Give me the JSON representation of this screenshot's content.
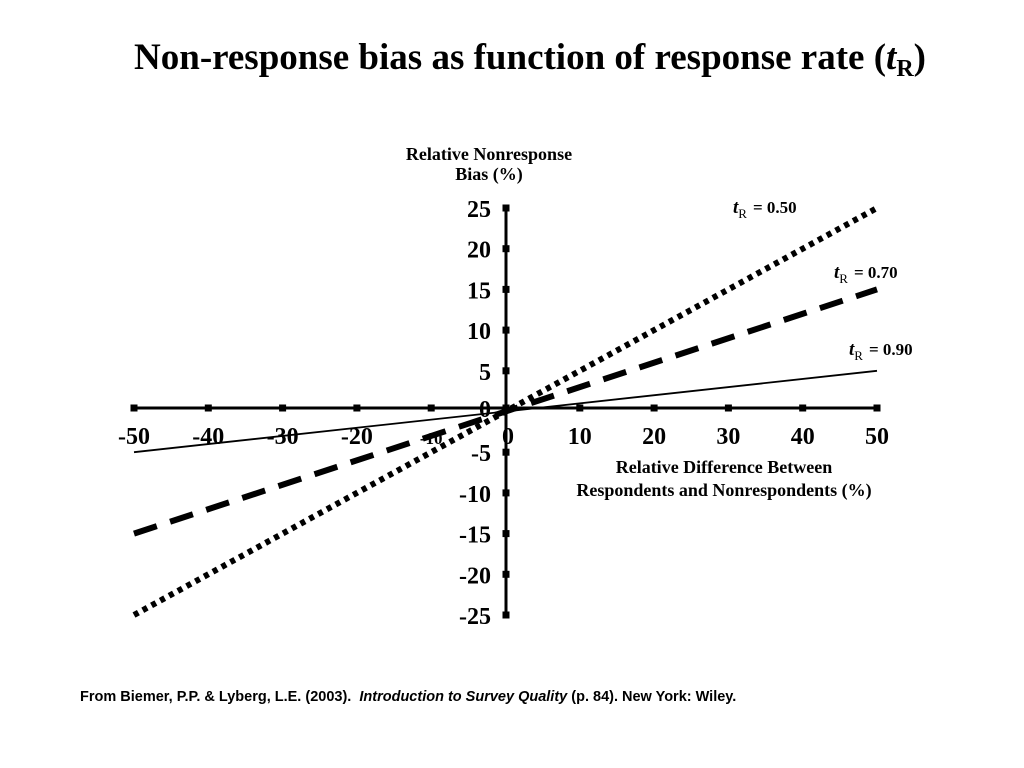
{
  "slide": {
    "title_prefix": "Non-response bias as function of response rate (",
    "title_symbol": "t",
    "title_subscript": "R",
    "title_suffix": ")",
    "citation_prefix": "From Biemer, P.P. & Lyberg, L.E. (2003).",
    "citation_book": "Introduction to Survey Quality",
    "citation_suffix": "(p. 84). New York: Wiley."
  },
  "chart_data": {
    "type": "line",
    "ylabel_line1": "Relative Nonresponse",
    "ylabel_line2": "Bias (%)",
    "xlabel_line1": "Relative Difference Between",
    "xlabel_line2": "Respondents and Nonrespondents (%)",
    "xlim": [
      -50,
      50
    ],
    "ylim": [
      -25,
      25
    ],
    "x_ticks": [
      "-50",
      "-40",
      "-30",
      "-20",
      "-10",
      "0",
      "10",
      "20",
      "30",
      "40",
      "50"
    ],
    "y_ticks": [
      "25",
      "20",
      "15",
      "10",
      "5",
      "0",
      "-5",
      "-10",
      "-15",
      "-20",
      "-25"
    ],
    "grid": false,
    "series": [
      {
        "name": "0.50",
        "label_symbol": "t",
        "label_sub": "R",
        "label_eq": "= 0.50",
        "style": "dotted",
        "x": [
          -50,
          50
        ],
        "y": [
          -25,
          25
        ]
      },
      {
        "name": "0.70",
        "label_symbol": "t",
        "label_sub": "R",
        "label_eq": "= 0.70",
        "style": "dashed",
        "x": [
          -50,
          50
        ],
        "y": [
          -15,
          15
        ]
      },
      {
        "name": "0.90",
        "label_symbol": "t",
        "label_sub": "R",
        "label_eq": "= 0.90",
        "style": "solid",
        "x": [
          -50,
          50
        ],
        "y": [
          -5,
          5
        ]
      }
    ],
    "line_color": "#000000"
  }
}
